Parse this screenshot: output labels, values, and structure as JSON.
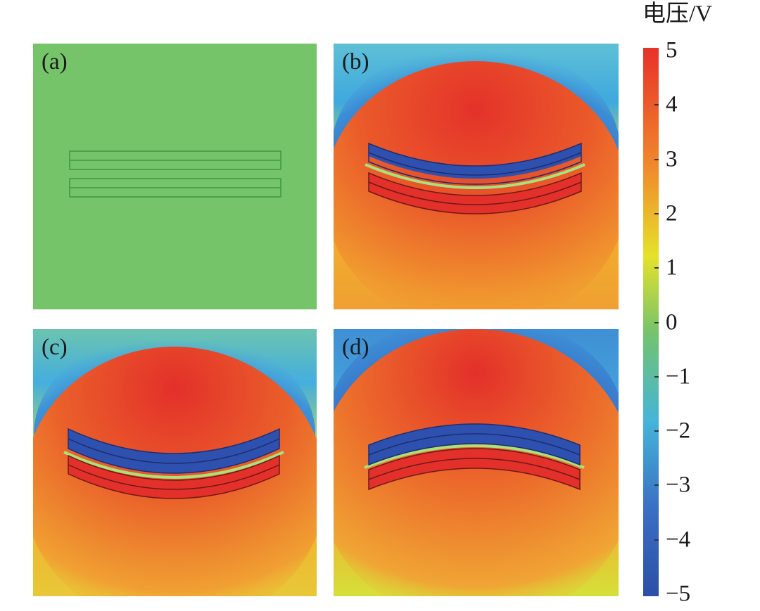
{
  "figure": {
    "panels": [
      {
        "id": "a",
        "label": "(a)"
      },
      {
        "id": "b",
        "label": "(b)"
      },
      {
        "id": "c",
        "label": "(c)"
      },
      {
        "id": "d",
        "label": "(d)"
      }
    ]
  },
  "colorbar": {
    "title": "电压/V",
    "ticks": [
      "5",
      "4",
      "3",
      "2",
      "1",
      "0",
      "−1",
      "−2",
      "−3",
      "−4",
      "−5"
    ],
    "range": [
      -5,
      5
    ],
    "colors": {
      "max": "#e8312a",
      "high": "#f08a2c",
      "mid_high": "#e6e22a",
      "zero": "#74c36c",
      "mid_low": "#45b5d8",
      "low": "#3a6fc4",
      "min": "#2b4fa6"
    }
  }
}
